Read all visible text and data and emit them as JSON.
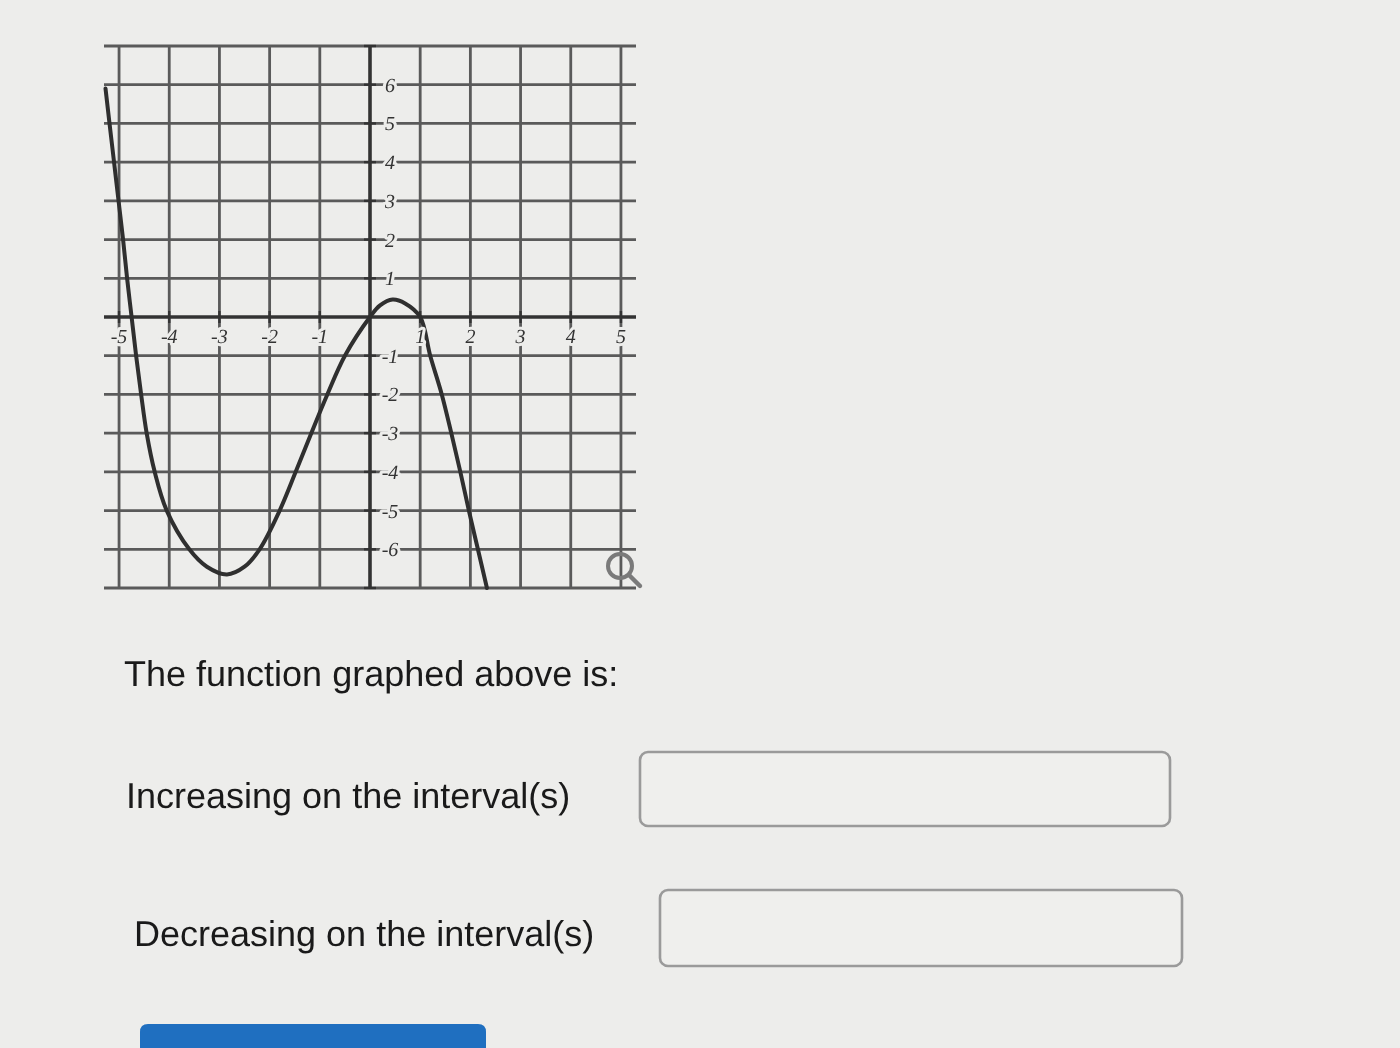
{
  "chart_data": {
    "type": "line",
    "x": [
      -5.27,
      -5.19,
      -5.1,
      -5.01,
      -4.92,
      -4.84,
      -4.75,
      -4.66,
      -4.56,
      -4.45,
      -4.29,
      -4.05,
      -3.6,
      -3.25,
      -2.85,
      -2.5,
      -2.2,
      -1.8,
      -1.48,
      -1.17,
      -0.85,
      -0.5,
      0,
      0.2,
      0.45,
      0.7,
      1,
      1.2,
      1.43,
      1.62,
      1.8,
      1.97,
      2.15,
      2.33
    ],
    "values": [
      5.9,
      5,
      4,
      3,
      2,
      1,
      0,
      -1,
      -2,
      -3,
      -4,
      -5,
      -6,
      -6.45,
      -6.65,
      -6.45,
      -6,
      -5,
      -4,
      -3,
      -2,
      -1,
      0,
      0.3,
      0.45,
      0.35,
      0,
      -1,
      -2,
      -3,
      -4,
      -5,
      -6,
      -7
    ],
    "color": "#2f2f2f",
    "xlim": [
      -5.3,
      5.3
    ],
    "ylim": [
      -7,
      7
    ],
    "xticks": [
      -5,
      -4,
      -3,
      -2,
      -1,
      1,
      2,
      3,
      4,
      5
    ],
    "yticks": [
      {
        "value": -7,
        "label": null
      },
      -6,
      -5,
      -4,
      -3,
      -2,
      -1,
      1,
      2,
      3,
      4,
      5,
      6,
      {
        "value": 7,
        "label": null
      }
    ],
    "grid": true,
    "annotations": [
      "The function graphed above is:",
      "Increasing on the interval(s)",
      "Decreasing on the interval(s)"
    ]
  }
}
